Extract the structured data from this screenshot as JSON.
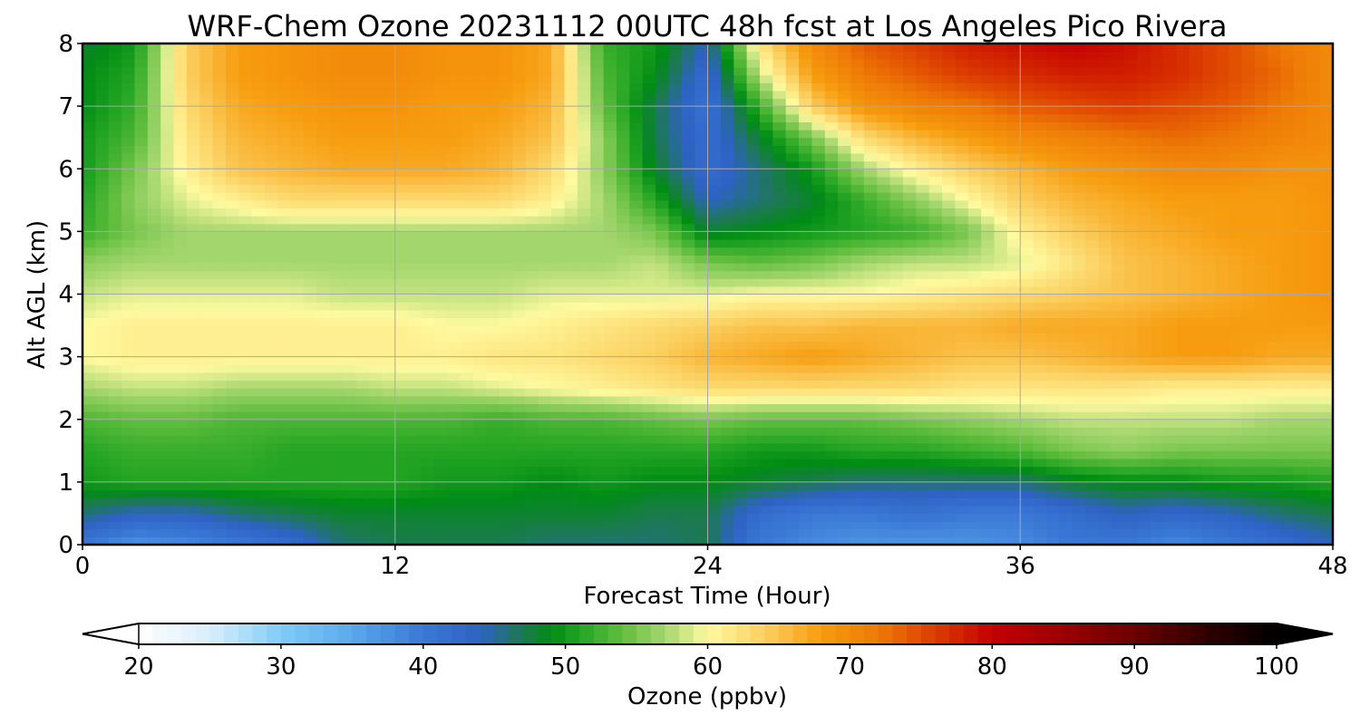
{
  "chart_data": {
    "type": "heatmap",
    "title": "WRF-Chem Ozone  20231112 00UTC 48h fcst at Los Angeles Pico Rivera",
    "xlabel": "Forecast Time (Hour)",
    "ylabel": "Alt AGL (km)",
    "xlim": [
      0,
      48
    ],
    "ylim": [
      0,
      8
    ],
    "xticks": [
      "0",
      "12",
      "24",
      "36",
      "48"
    ],
    "yticks": [
      "0",
      "1",
      "2",
      "3",
      "4",
      "5",
      "6",
      "7",
      "8"
    ],
    "grid": true,
    "x": [
      0,
      2,
      4,
      6,
      8,
      10,
      12,
      14,
      16,
      18,
      20,
      22,
      24,
      26,
      28,
      30,
      32,
      34,
      36,
      38,
      40,
      42,
      44,
      46,
      48
    ],
    "y": [
      0,
      0.5,
      1,
      1.5,
      2,
      2.5,
      3,
      3.5,
      4,
      4.5,
      5,
      5.5,
      6,
      6.5,
      7,
      7.5,
      8
    ],
    "values": [
      [
        40,
        37,
        38,
        40,
        42,
        46,
        47,
        47,
        47,
        46,
        46,
        46,
        47,
        40,
        38,
        37,
        37,
        37,
        38,
        40,
        40,
        38,
        40,
        42,
        44
      ],
      [
        46,
        44,
        44,
        46,
        47,
        48,
        48,
        48,
        48,
        48,
        48,
        47,
        47,
        42,
        40,
        40,
        41,
        40,
        40,
        42,
        44,
        43,
        44,
        46,
        47
      ],
      [
        50,
        51,
        51,
        51,
        51,
        51,
        51,
        50,
        50,
        49,
        50,
        49,
        49,
        48,
        47,
        46,
        46,
        46,
        46,
        48,
        49,
        49,
        50,
        50,
        51
      ],
      [
        51,
        52,
        52,
        52,
        51,
        51,
        51,
        51,
        51,
        51,
        51,
        51,
        51,
        50,
        50,
        51,
        51,
        52,
        53,
        55,
        56,
        55,
        55,
        55,
        55
      ],
      [
        53,
        54,
        54,
        53,
        53,
        53,
        53,
        53,
        52,
        53,
        53,
        54,
        55,
        54,
        54,
        54,
        55,
        56,
        57,
        58,
        58,
        58,
        58,
        57,
        57
      ],
      [
        57,
        58,
        58,
        57,
        57,
        57,
        58,
        58,
        59,
        60,
        61,
        62,
        63,
        63,
        63,
        63,
        63,
        62,
        62,
        62,
        62,
        61,
        61,
        61,
        61
      ],
      [
        60,
        61,
        61,
        61,
        61,
        61,
        61,
        61,
        62,
        62,
        63,
        64,
        66,
        67,
        68,
        67,
        66,
        65,
        65,
        66,
        67,
        68,
        68,
        67,
        67
      ],
      [
        60,
        61,
        61,
        61,
        61,
        61,
        61,
        60,
        60,
        61,
        62,
        63,
        64,
        65,
        65,
        66,
        66,
        66,
        67,
        67,
        67,
        68,
        68,
        68,
        68
      ],
      [
        58,
        59,
        59,
        59,
        59,
        58,
        58,
        58,
        58,
        59,
        59,
        59,
        59,
        60,
        60,
        60,
        61,
        62,
        63,
        64,
        65,
        66,
        67,
        68,
        69
      ],
      [
        56,
        57,
        57,
        57,
        57,
        57,
        57,
        57,
        57,
        57,
        57,
        58,
        55,
        54,
        55,
        57,
        58,
        58,
        59,
        62,
        65,
        66,
        67,
        68,
        69
      ],
      [
        52,
        55,
        57,
        57,
        57,
        57,
        57,
        57,
        57,
        57,
        57,
        55,
        48,
        49,
        50,
        51,
        52,
        55,
        61,
        64,
        66,
        67,
        68,
        68,
        69
      ],
      [
        51,
        56,
        59,
        61,
        63,
        63,
        63,
        63,
        63,
        61,
        57,
        51,
        44,
        46,
        48,
        52,
        56,
        60,
        64,
        66,
        67,
        68,
        68,
        68,
        69
      ],
      [
        50,
        55,
        61,
        65,
        66,
        67,
        67,
        67,
        66,
        63,
        56,
        48,
        42,
        46,
        50,
        57,
        61,
        64,
        66,
        68,
        69,
        70,
        70,
        69,
        69
      ],
      [
        50,
        53,
        62,
        66,
        67,
        68,
        68,
        68,
        67,
        65,
        56,
        47,
        42,
        48,
        55,
        63,
        66,
        68,
        70,
        71,
        72,
        73,
        72,
        71,
        70
      ],
      [
        49,
        52,
        63,
        67,
        68,
        69,
        69,
        68,
        68,
        66,
        54,
        47,
        41,
        52,
        64,
        69,
        71,
        72,
        74,
        75,
        76,
        75,
        74,
        72,
        70
      ],
      [
        49,
        51,
        64,
        68,
        69,
        70,
        70,
        69,
        69,
        67,
        53,
        49,
        42,
        58,
        68,
        72,
        74,
        76,
        77,
        78,
        78,
        77,
        75,
        73,
        70
      ],
      [
        48,
        50,
        64,
        68,
        69,
        70,
        70,
        69,
        69,
        67,
        52,
        50,
        44,
        62,
        70,
        74,
        76,
        78,
        79,
        80,
        79,
        77,
        75,
        72,
        70
      ]
    ],
    "colorbar": {
      "label": "Ozone  (ppbv)",
      "ticks": [
        "20",
        "30",
        "40",
        "50",
        "60",
        "70",
        "80",
        "90",
        "100"
      ],
      "vmin": 20,
      "vmax": 100,
      "step": 1,
      "extend": "both",
      "under_color": "#ffffff",
      "over_color": "#000000",
      "anchors": [
        [
          20,
          "#ffffff"
        ],
        [
          25,
          "#d8eefc"
        ],
        [
          30,
          "#7fcdf7"
        ],
        [
          35,
          "#5aa9ec"
        ],
        [
          40,
          "#3a78d6"
        ],
        [
          44,
          "#2e62c4"
        ],
        [
          47,
          "#1b7a4e"
        ],
        [
          49,
          "#008c14"
        ],
        [
          51,
          "#23a423"
        ],
        [
          54,
          "#62be3e"
        ],
        [
          57,
          "#a4d66e"
        ],
        [
          60,
          "#fffaa0"
        ],
        [
          64,
          "#fbcf5f"
        ],
        [
          68,
          "#f79c0e"
        ],
        [
          72,
          "#ee7a06"
        ],
        [
          76,
          "#dc3c00"
        ],
        [
          80,
          "#c40000"
        ],
        [
          85,
          "#9c0000"
        ],
        [
          90,
          "#6c0000"
        ],
        [
          95,
          "#300000"
        ],
        [
          100,
          "#000000"
        ]
      ]
    }
  }
}
